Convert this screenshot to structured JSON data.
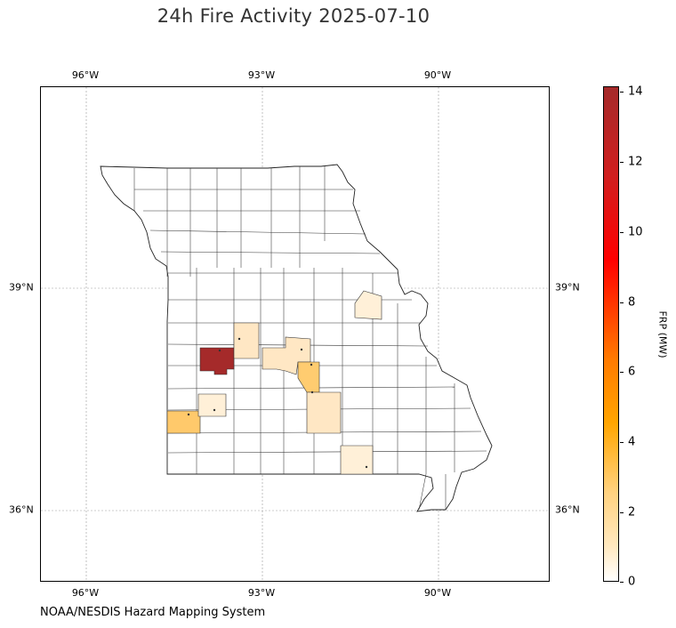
{
  "title": "24h Fire Activity 2025-07-10",
  "credit": "NOAA/NESDIS Hazard Mapping System",
  "lon_ticks": [
    "96°W",
    "93°W",
    "90°W"
  ],
  "lat_ticks": [
    "39°N",
    "36°N"
  ],
  "colorbar": {
    "label": "FRP (MW)",
    "ticks": [
      "0",
      "2",
      "4",
      "6",
      "8",
      "10",
      "12",
      "14"
    ],
    "colors": [
      "#ffffff",
      "#ffe9c0",
      "#ffd27f",
      "#ffa500",
      "#ff7a00",
      "#ff0000",
      "#d11f1f",
      "#a52a2a"
    ]
  },
  "detections": [
    {
      "area": "west-central",
      "frp": 14.1,
      "color": "#a52a2a"
    },
    {
      "area": "southwest",
      "frp": 3.1,
      "color": "#ffc96b"
    },
    {
      "area": "central",
      "frp": 3.3,
      "color": "#ffcc70"
    },
    {
      "area": "south-central",
      "frp": 1.5,
      "color": "#ffe7c4"
    },
    {
      "area": "northeast",
      "frp": 1.0,
      "color": "#fff0d8"
    }
  ]
}
